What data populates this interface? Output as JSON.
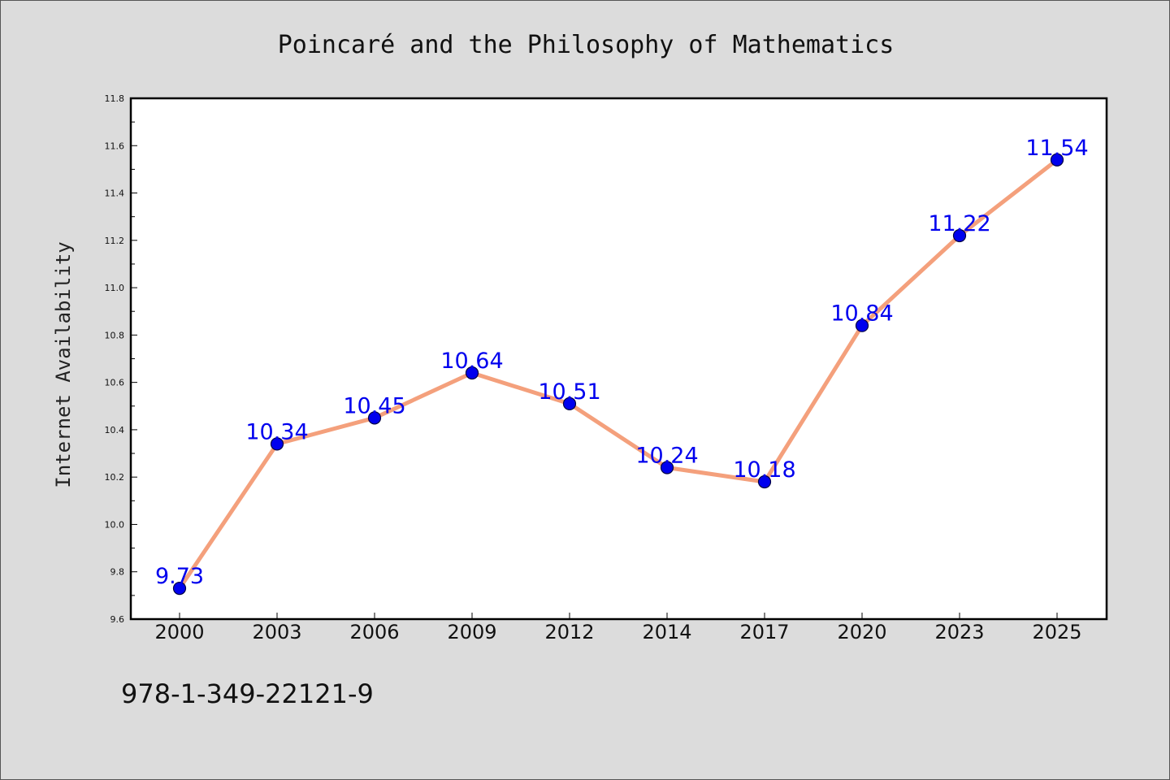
{
  "chart_data": {
    "type": "line",
    "title": "Poincaré and the Philosophy of Mathematics",
    "xlabel": "",
    "ylabel": "Internet Availability",
    "categories": [
      "2000",
      "2003",
      "2006",
      "2009",
      "2012",
      "2014",
      "2017",
      "2020",
      "2023",
      "2025"
    ],
    "series": [
      {
        "values": [
          9.73,
          10.34,
          10.45,
          10.64,
          10.51,
          10.24,
          10.18,
          10.84,
          11.22,
          11.54
        ],
        "data_labels": [
          "9.73",
          "10.34",
          "10.45",
          "10.64",
          "10.51",
          "10.24",
          "10.18",
          "10.84",
          "11.22",
          "11.54"
        ]
      }
    ],
    "ylim": [
      9.6,
      11.8
    ],
    "y_ticks": [
      "9.6",
      "9.8",
      "10.0",
      "10.2",
      "10.4",
      "10.6",
      "10.8",
      "11.0",
      "11.2",
      "11.4",
      "11.6",
      "11.8"
    ],
    "grid": false,
    "legend": "none",
    "colors": {
      "line": "#f4a07c",
      "marker": "#0000ee",
      "marker_edge": "#000044",
      "data_label": "#0000ee",
      "plot_background": "#ffffff",
      "figure_background": "#dcdcdc"
    }
  },
  "footnote": "978-1-349-22121-9"
}
